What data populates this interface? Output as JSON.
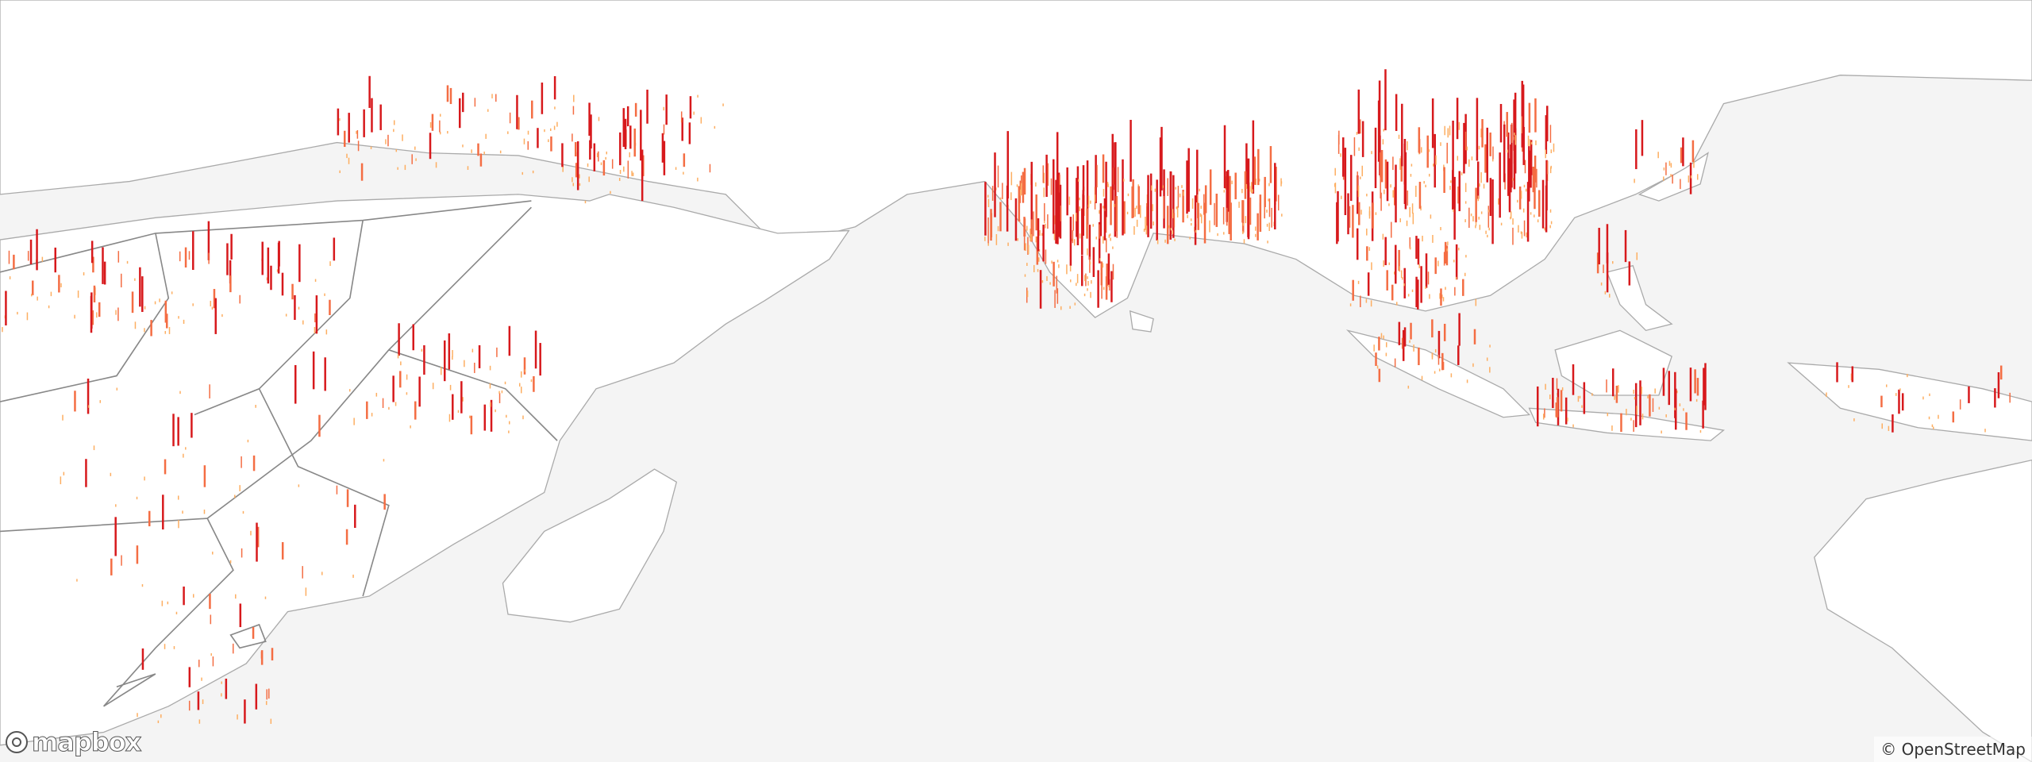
{
  "logo": {
    "text": "mapbox"
  },
  "attribution": "© OpenStreetMap"
}
